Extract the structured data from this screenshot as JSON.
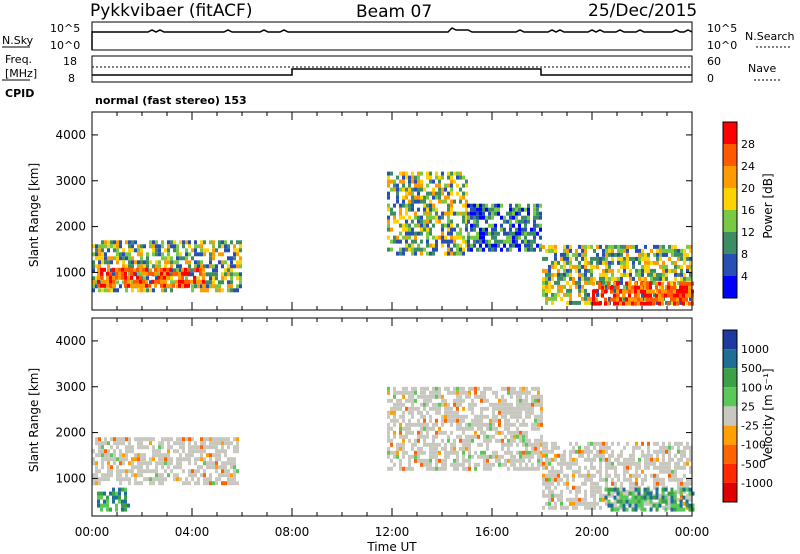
{
  "header": {
    "radar": "Pykkvibaer (fitACF)",
    "beam": "Beam 07",
    "date": "25/Dec/2015"
  },
  "strip": {
    "nsky_label": "N.Sky",
    "nsearch_label": "N.Search",
    "n_left_ticks": [
      "10^5",
      "10^0"
    ],
    "n_right_ticks": [
      "10^5",
      "10^0"
    ],
    "freq_label_1": "Freq.",
    "freq_label_2": "[MHz]",
    "freq_ticks": [
      "18",
      "8"
    ],
    "nave_label": "Nave",
    "nave_ticks": [
      "60",
      "0"
    ],
    "cpid_label": "CPID",
    "cpid_text": "normal (fast stereo) 153"
  },
  "chart_data": [
    {
      "type": "heatmap",
      "panel": "power",
      "ylabel": "Slant Range [km]",
      "xlabel": "Time UT",
      "yticks": [
        1000,
        2000,
        3000,
        4000
      ],
      "ylim": [
        180,
        4500
      ],
      "xlim_hours": [
        0,
        24
      ],
      "xtick_labels": [
        "00:00",
        "04:00",
        "08:00",
        "12:00",
        "16:00",
        "20:00",
        "00:00"
      ],
      "colorbar": {
        "label": "Power [dB]",
        "ticks": [
          "28",
          "24",
          "20",
          "16",
          "12",
          "8",
          "4"
        ],
        "colors": [
          "#ff0000",
          "#ff5a00",
          "#ff9a00",
          "#ffd200",
          "#7ac943",
          "#3c8c64",
          "#2850b4",
          "#0000ff"
        ]
      },
      "regions": [
        {
          "t0": 0.0,
          "t1": 5.9,
          "r0": 650,
          "r1": 1700,
          "level": "mid"
        },
        {
          "t0": 0.2,
          "t1": 4.5,
          "r0": 700,
          "r1": 1100,
          "level": "high"
        },
        {
          "t0": 11.8,
          "t1": 15.0,
          "r0": 1400,
          "r1": 3200,
          "level": "mid"
        },
        {
          "t0": 15.0,
          "t1": 18.0,
          "r0": 1500,
          "r1": 2500,
          "level": "low"
        },
        {
          "t0": 18.0,
          "t1": 24.0,
          "r0": 300,
          "r1": 1600,
          "level": "mid"
        },
        {
          "t0": 20.0,
          "t1": 24.0,
          "r0": 300,
          "r1": 800,
          "level": "high"
        }
      ]
    },
    {
      "type": "heatmap",
      "panel": "velocity",
      "ylabel": "Slant Range [km]",
      "xlabel": "Time UT",
      "yticks": [
        1000,
        2000,
        3000,
        4000
      ],
      "ylim": [
        180,
        4500
      ],
      "xlim_hours": [
        0,
        24
      ],
      "xtick_labels": [
        "00:00",
        "04:00",
        "08:00",
        "12:00",
        "16:00",
        "20:00",
        "00:00"
      ],
      "colorbar": {
        "label": "Velocity [m s⁻¹]",
        "ticks": [
          "1000",
          "500",
          "100",
          "25",
          "-25",
          "-100",
          "-500",
          "-1000"
        ],
        "colors": [
          "#1e3ca0",
          "#1e6e96",
          "#3ca046",
          "#5ac85a",
          "#c8c8c0",
          "#ffa000",
          "#ff6400",
          "#ff2800",
          "#e00000"
        ]
      },
      "regions": [
        {
          "t0": 0.0,
          "t1": 5.8,
          "r0": 900,
          "r1": 1900,
          "level": "gray"
        },
        {
          "t0": 0.2,
          "t1": 1.5,
          "r0": 300,
          "r1": 800,
          "level": "green"
        },
        {
          "t0": 11.8,
          "t1": 18.0,
          "r0": 1200,
          "r1": 3000,
          "level": "gray"
        },
        {
          "t0": 18.0,
          "t1": 24.0,
          "r0": 400,
          "r1": 1800,
          "level": "gray"
        },
        {
          "t0": 20.5,
          "t1": 24.0,
          "r0": 300,
          "r1": 800,
          "level": "green"
        }
      ]
    }
  ]
}
